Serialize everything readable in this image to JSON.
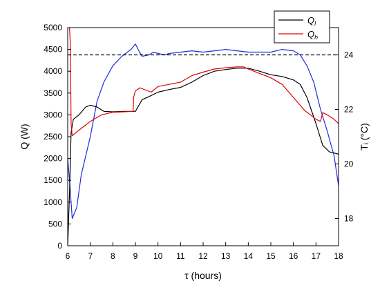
{
  "chart_data": {
    "type": "line",
    "xlabel": "τ (hours)",
    "ylabel_left": "Q (W)",
    "ylabel_right": "Tᵢ (°C)",
    "xlim": [
      6,
      18
    ],
    "ylim_left": [
      0,
      5000
    ],
    "ylim_right": [
      17,
      25
    ],
    "x_ticks": [
      6,
      7,
      8,
      9,
      10,
      11,
      12,
      13,
      14,
      15,
      16,
      17,
      18
    ],
    "y_ticks_left": [
      0,
      500,
      1000,
      1500,
      2000,
      2500,
      3000,
      3500,
      4000,
      4500,
      5000
    ],
    "y_ticks_right": [
      18,
      20,
      22,
      24
    ],
    "grid": false,
    "legend_position": "top-right",
    "colors": {
      "Q_l": "#000000",
      "Q_h": "#e00000",
      "T_i": "#1f2bd9",
      "setpoint": "#000000"
    },
    "series": [
      {
        "name": "Q_l",
        "legend_main": "Q",
        "legend_sub": "l",
        "axis": "left",
        "x": [
          6.0,
          6.08,
          6.15,
          6.25,
          6.5,
          6.8,
          7.0,
          7.3,
          7.6,
          8.0,
          8.5,
          8.9,
          9.0,
          9.3,
          9.6,
          10.0,
          10.5,
          11.0,
          11.5,
          12.0,
          12.5,
          13.0,
          13.5,
          14.0,
          14.5,
          15.0,
          15.5,
          16.0,
          16.3,
          16.6,
          17.0,
          17.3,
          17.6,
          18.0
        ],
        "values": [
          0,
          1200,
          2600,
          2900,
          3000,
          3180,
          3220,
          3180,
          3080,
          3070,
          3080,
          3080,
          3080,
          3350,
          3420,
          3520,
          3580,
          3630,
          3750,
          3900,
          4000,
          4040,
          4070,
          4070,
          4000,
          3920,
          3880,
          3800,
          3700,
          3400,
          2800,
          2300,
          2150,
          2100
        ]
      },
      {
        "name": "Q_h",
        "legend_main": "Q",
        "legend_sub": "h",
        "axis": "left",
        "x": [
          6.08,
          6.12,
          6.15,
          6.2,
          6.5,
          7.0,
          7.5,
          8.0,
          8.5,
          8.9,
          8.92,
          9.0,
          9.2,
          9.5,
          9.7,
          10.0,
          10.5,
          11.0,
          11.5,
          12.0,
          12.5,
          13.0,
          13.5,
          13.8,
          14.0,
          14.5,
          15.0,
          15.5,
          16.0,
          16.5,
          17.0,
          17.2,
          17.3,
          17.5,
          17.8,
          18.0
        ],
        "values": [
          5000,
          4600,
          2800,
          2520,
          2650,
          2850,
          3000,
          3060,
          3070,
          3080,
          3400,
          3550,
          3620,
          3560,
          3520,
          3650,
          3700,
          3750,
          3900,
          3980,
          4050,
          4080,
          4100,
          4100,
          4050,
          3950,
          3850,
          3700,
          3400,
          3100,
          2900,
          2850,
          3050,
          3000,
          2900,
          2800
        ]
      },
      {
        "name": "T_i",
        "axis": "right",
        "x": [
          6.0,
          6.1,
          6.2,
          6.4,
          6.6,
          7.0,
          7.3,
          7.6,
          8.0,
          8.4,
          8.8,
          9.0,
          9.15,
          9.3,
          9.6,
          9.8,
          10.0,
          10.3,
          10.5,
          11.0,
          11.5,
          12.0,
          12.5,
          13.0,
          13.5,
          14.0,
          14.5,
          15.0,
          15.5,
          16.0,
          16.3,
          16.6,
          16.9,
          17.2,
          17.5,
          17.8,
          18.0
        ],
        "values": [
          20.2,
          19.2,
          18.0,
          18.4,
          19.6,
          21.0,
          22.3,
          23.0,
          23.6,
          23.95,
          24.2,
          24.4,
          24.15,
          23.95,
          24.0,
          24.1,
          24.05,
          24.0,
          24.05,
          24.1,
          24.15,
          24.1,
          24.15,
          24.2,
          24.15,
          24.1,
          24.1,
          24.1,
          24.2,
          24.15,
          24.0,
          23.6,
          23.0,
          22.0,
          21.2,
          20.3,
          19.2
        ]
      },
      {
        "name": "setpoint",
        "axis": "right",
        "style": "dashed",
        "x": [
          6.0,
          18.0
        ],
        "values": [
          24.0,
          24.0
        ]
      }
    ]
  }
}
